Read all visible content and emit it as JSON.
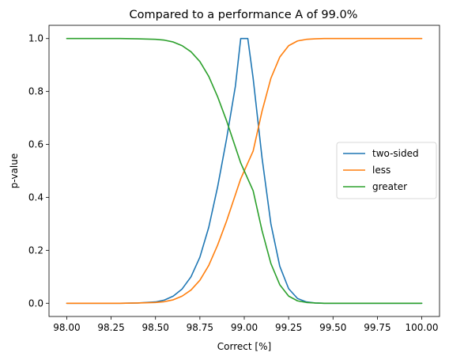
{
  "chart_data": {
    "type": "line",
    "title": "Compared to a performance A of 99.0%",
    "xlabel": "Correct [%]",
    "ylabel": "p-value",
    "xlim": [
      97.9,
      100.1
    ],
    "ylim": [
      -0.05,
      1.05
    ],
    "x_ticks": [
      98.0,
      98.25,
      98.5,
      98.75,
      99.0,
      99.25,
      99.5,
      99.75,
      100.0
    ],
    "x_tick_labels": [
      "98.00",
      "98.25",
      "98.50",
      "98.75",
      "99.00",
      "99.25",
      "99.50",
      "99.75",
      "100.00"
    ],
    "y_ticks": [
      0.0,
      0.2,
      0.4,
      0.6,
      0.8,
      1.0
    ],
    "y_tick_labels": [
      "0.0",
      "0.2",
      "0.4",
      "0.6",
      "0.8",
      "1.0"
    ],
    "grid": false,
    "legend_position": "center-right",
    "x": [
      98.0,
      98.1,
      98.2,
      98.3,
      98.4,
      98.5,
      98.55,
      98.6,
      98.65,
      98.7,
      98.75,
      98.8,
      98.85,
      98.9,
      98.95,
      98.98,
      99.0,
      99.02,
      99.05,
      99.1,
      99.15,
      99.2,
      99.25,
      99.3,
      99.35,
      99.4,
      99.45,
      99.5,
      99.6,
      99.7,
      99.8,
      99.9,
      100.0
    ],
    "series": [
      {
        "name": "two-sided",
        "color": "#1f77b4",
        "values": [
          0.0,
          0.0,
          0.0,
          0.0,
          0.001,
          0.005,
          0.012,
          0.027,
          0.054,
          0.1,
          0.174,
          0.287,
          0.44,
          0.62,
          0.82,
          1.0,
          1.0,
          1.0,
          0.85,
          0.55,
          0.3,
          0.14,
          0.055,
          0.018,
          0.005,
          0.001,
          0.0,
          0.0,
          0.0,
          0.0,
          0.0,
          0.0,
          0.0
        ]
      },
      {
        "name": "less",
        "color": "#ff7f0e",
        "values": [
          0.0,
          0.0,
          0.0,
          0.0,
          0.001,
          0.003,
          0.006,
          0.013,
          0.027,
          0.05,
          0.087,
          0.143,
          0.22,
          0.31,
          0.41,
          0.47,
          0.5,
          0.53,
          0.575,
          0.725,
          0.85,
          0.93,
          0.973,
          0.991,
          0.997,
          0.999,
          1.0,
          1.0,
          1.0,
          1.0,
          1.0,
          1.0,
          1.0
        ]
      },
      {
        "name": "greater",
        "color": "#2ca02c",
        "values": [
          1.0,
          1.0,
          1.0,
          1.0,
          0.999,
          0.997,
          0.994,
          0.987,
          0.973,
          0.95,
          0.913,
          0.857,
          0.78,
          0.69,
          0.59,
          0.53,
          0.5,
          0.47,
          0.425,
          0.275,
          0.15,
          0.07,
          0.027,
          0.009,
          0.003,
          0.001,
          0.0,
          0.0,
          0.0,
          0.0,
          0.0,
          0.0,
          0.0
        ]
      }
    ]
  }
}
